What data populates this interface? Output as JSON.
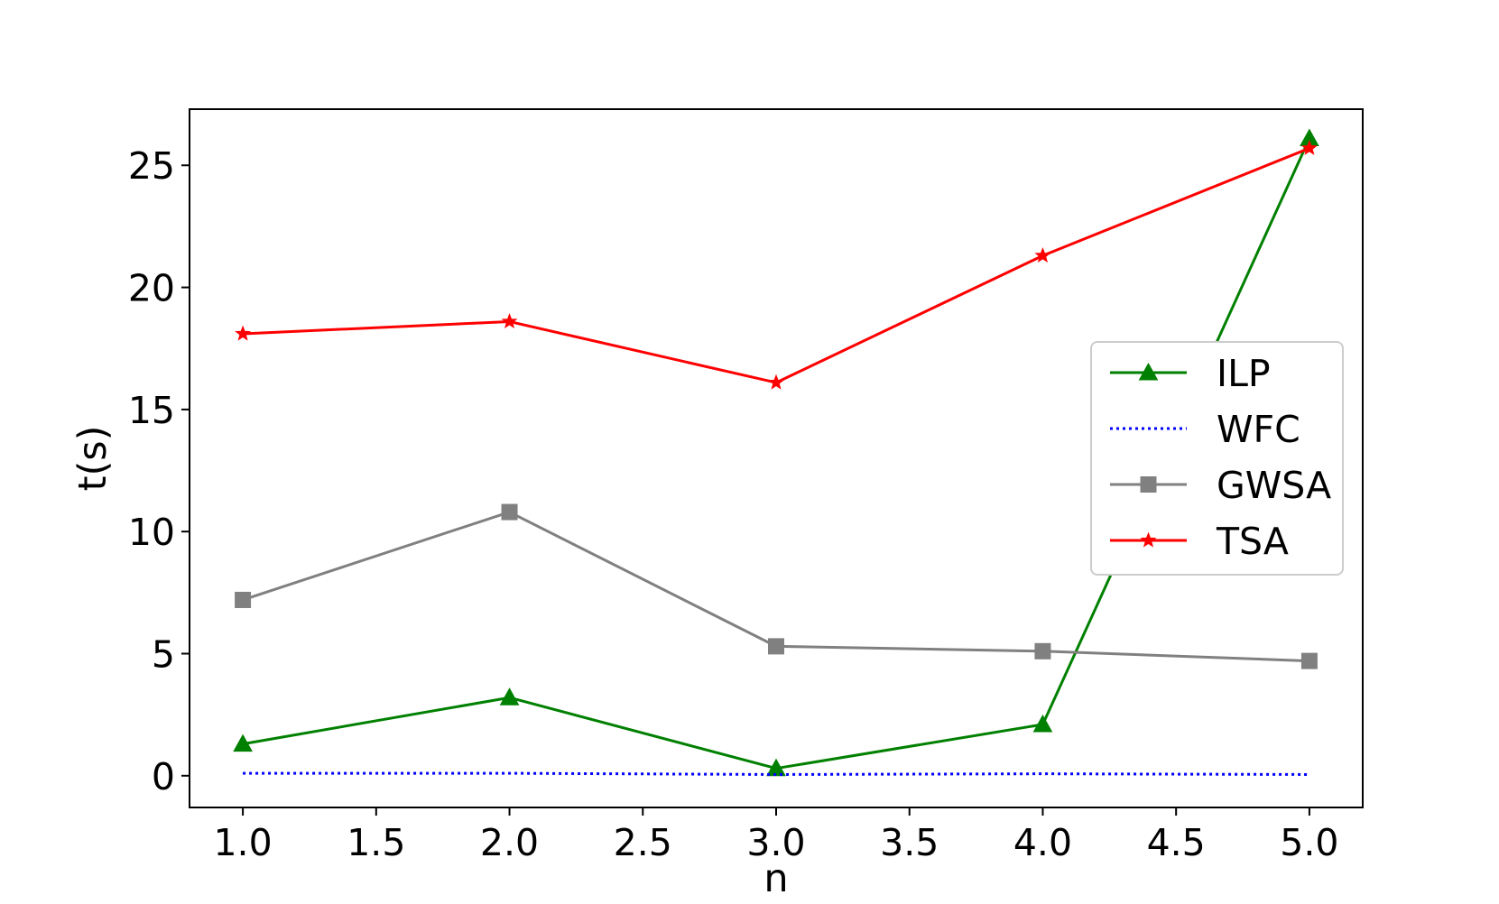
{
  "chart_data": {
    "type": "line",
    "title": "",
    "xlabel": "n",
    "ylabel": "t(s)",
    "xlim": [
      0.8,
      5.2
    ],
    "ylim": [
      -1.3,
      27.3
    ],
    "xticks": [
      1.0,
      1.5,
      2.0,
      2.5,
      3.0,
      3.5,
      4.0,
      4.5,
      5.0
    ],
    "xtick_labels": [
      "1.0",
      "1.5",
      "2.0",
      "2.5",
      "3.0",
      "3.5",
      "4.0",
      "4.5",
      "5.0"
    ],
    "yticks": [
      0,
      5,
      10,
      15,
      20,
      25
    ],
    "ytick_labels": [
      "0",
      "5",
      "10",
      "15",
      "20",
      "25"
    ],
    "grid": false,
    "legend_position": "center-right",
    "x": [
      1,
      2,
      3,
      4,
      5
    ],
    "series": [
      {
        "name": "ILP",
        "values": [
          1.3,
          3.2,
          0.3,
          2.1,
          26.1
        ],
        "color": "#008000",
        "style": "solid",
        "marker": "triangle"
      },
      {
        "name": "WFC",
        "values": [
          0.1,
          0.1,
          0.05,
          0.08,
          0.05
        ],
        "color": "#0000ff",
        "style": "dotted",
        "marker": "none"
      },
      {
        "name": "GWSA",
        "values": [
          7.2,
          10.8,
          5.3,
          5.1,
          4.7
        ],
        "color": "#808080",
        "style": "solid",
        "marker": "square"
      },
      {
        "name": "TSA",
        "values": [
          18.1,
          18.6,
          16.1,
          21.3,
          25.7
        ],
        "color": "#ff0000",
        "style": "solid",
        "marker": "star"
      }
    ]
  }
}
